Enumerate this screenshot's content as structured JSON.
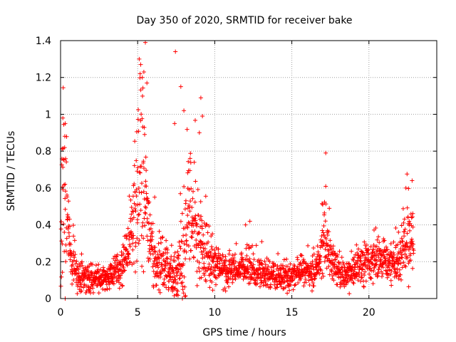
{
  "chart_data": {
    "type": "scatter",
    "title": "Day 350 of 2020, SRMTID for receiver bake",
    "xlabel": "GPS time / hours",
    "ylabel": "SRMTID / TECUs",
    "xlim": [
      0,
      24.4
    ],
    "ylim": [
      0,
      1.4
    ],
    "xticks": [
      0,
      5,
      10,
      15,
      20
    ],
    "xtick_labels": [
      "0",
      "5",
      "10",
      "15",
      "20"
    ],
    "yticks": [
      0,
      0.2,
      0.4,
      0.6,
      0.8,
      1.0,
      1.2,
      1.4
    ],
    "ytick_labels": [
      "0",
      "0.2",
      "0.4",
      "0.6",
      "0.8",
      "1",
      "1.2",
      "1.4"
    ],
    "grid": true,
    "marker": "plus",
    "series_color": "#ff0000",
    "envelope": {
      "x": [
        0.0,
        0.2,
        0.4,
        0.6,
        0.8,
        1.0,
        1.5,
        2.0,
        2.5,
        3.0,
        3.5,
        4.0,
        4.5,
        4.8,
        5.0,
        5.2,
        5.4,
        5.6,
        5.8,
        6.0,
        6.5,
        7.0,
        7.3,
        7.5,
        7.8,
        8.0,
        8.3,
        8.6,
        9.0,
        9.3,
        9.6,
        10.0,
        10.5,
        11.0,
        11.5,
        12.0,
        12.2,
        12.5,
        13.0,
        13.5,
        14.0,
        14.5,
        15.0,
        15.5,
        16.0,
        16.5,
        16.8,
        17.0,
        17.2,
        17.4,
        17.8,
        18.0,
        18.5,
        19.0,
        19.5,
        20.0,
        20.5,
        21.0,
        21.5,
        22.0,
        22.3,
        22.6,
        22.9
      ],
      "level": [
        0.35,
        0.6,
        0.45,
        0.25,
        0.18,
        0.14,
        0.12,
        0.1,
        0.11,
        0.1,
        0.15,
        0.18,
        0.3,
        0.45,
        0.55,
        0.65,
        0.55,
        0.42,
        0.3,
        0.22,
        0.2,
        0.16,
        0.12,
        0.12,
        0.18,
        0.28,
        0.4,
        0.45,
        0.35,
        0.25,
        0.2,
        0.18,
        0.16,
        0.15,
        0.15,
        0.17,
        0.2,
        0.15,
        0.14,
        0.13,
        0.12,
        0.12,
        0.13,
        0.14,
        0.14,
        0.15,
        0.22,
        0.3,
        0.32,
        0.25,
        0.18,
        0.16,
        0.13,
        0.15,
        0.18,
        0.2,
        0.22,
        0.2,
        0.18,
        0.22,
        0.3,
        0.34,
        0.28
      ],
      "spread": [
        0.3,
        0.35,
        0.3,
        0.15,
        0.1,
        0.08,
        0.06,
        0.05,
        0.05,
        0.05,
        0.07,
        0.08,
        0.15,
        0.28,
        0.4,
        0.45,
        0.4,
        0.3,
        0.2,
        0.13,
        0.12,
        0.1,
        0.1,
        0.12,
        0.18,
        0.28,
        0.3,
        0.28,
        0.22,
        0.15,
        0.1,
        0.08,
        0.07,
        0.06,
        0.06,
        0.07,
        0.12,
        0.07,
        0.06,
        0.06,
        0.06,
        0.06,
        0.06,
        0.06,
        0.06,
        0.07,
        0.1,
        0.15,
        0.2,
        0.12,
        0.08,
        0.07,
        0.06,
        0.07,
        0.08,
        0.09,
        0.1,
        0.09,
        0.09,
        0.12,
        0.15,
        0.18,
        0.12
      ]
    },
    "notable_points": [
      {
        "x": 5.1,
        "y": 1.3
      },
      {
        "x": 5.2,
        "y": 1.27
      },
      {
        "x": 5.5,
        "y": 1.39
      },
      {
        "x": 5.4,
        "y": 1.23
      },
      {
        "x": 5.6,
        "y": 1.17
      },
      {
        "x": 7.45,
        "y": 1.34
      },
      {
        "x": 7.8,
        "y": 1.15
      },
      {
        "x": 8.0,
        "y": 1.02
      },
      {
        "x": 9.1,
        "y": 1.09
      },
      {
        "x": 0.15,
        "y": 0.98
      },
      {
        "x": 0.3,
        "y": 0.95
      },
      {
        "x": 5.3,
        "y": 1.2
      },
      {
        "x": 7.4,
        "y": 0.95
      },
      {
        "x": 9.2,
        "y": 0.99
      },
      {
        "x": 17.2,
        "y": 0.79
      },
      {
        "x": 22.8,
        "y": 0.64
      },
      {
        "x": 22.4,
        "y": 0.6
      },
      {
        "x": 9.0,
        "y": 0.9
      },
      {
        "x": 12.0,
        "y": 0.4
      },
      {
        "x": 0.3,
        "y": 0.0
      },
      {
        "x": 7.9,
        "y": 0.0
      },
      {
        "x": 7.5,
        "y": 0.02
      },
      {
        "x": 7.3,
        "y": 0.05
      },
      {
        "x": 7.6,
        "y": 0.04
      }
    ]
  }
}
